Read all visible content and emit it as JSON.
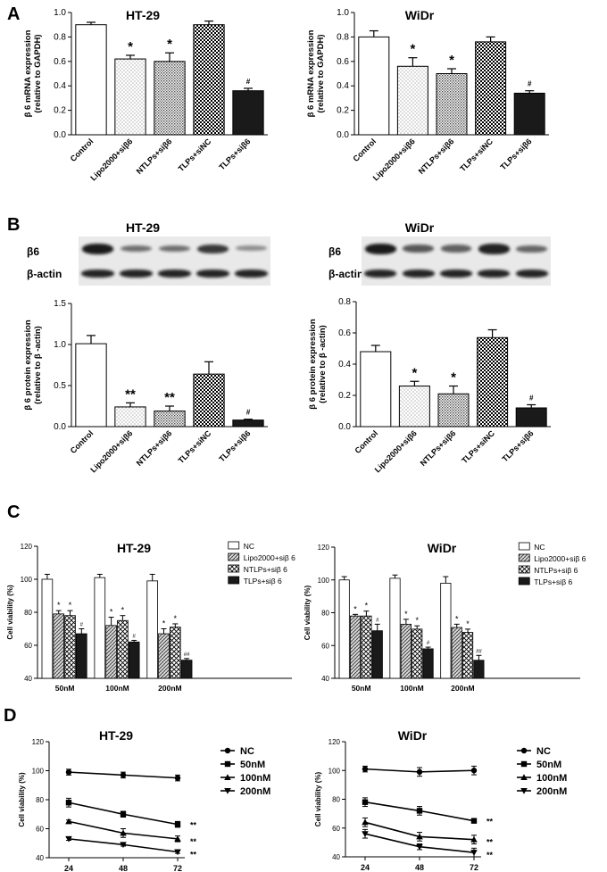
{
  "panels": {
    "a": "A",
    "b": "B",
    "c": "C",
    "d": "D"
  },
  "colors": {
    "black": "#000000",
    "dark_bar": "#1a1a1a",
    "white_bar": "#ffffff"
  },
  "patterns": [
    "white",
    "dotted",
    "dense-dotted",
    "checkered",
    "solid-black"
  ],
  "c_patterns": [
    "white",
    "hatched",
    "crosshatched",
    "solid-black"
  ],
  "d_markers": [
    "circle",
    "square",
    "triangle-up",
    "triangle-down"
  ],
  "blot_labels": {
    "target": "β6",
    "control": "β-actin"
  },
  "blot_bands": [
    {
      "title": "HT-29",
      "target": [
        1.0,
        0.45,
        0.45,
        0.8,
        0.25
      ],
      "control": [
        1.0,
        1.0,
        1.0,
        1.0,
        1.0
      ]
    },
    {
      "title": "WiDr",
      "target": [
        1.0,
        0.6,
        0.55,
        0.95,
        0.5
      ],
      "control": [
        1.0,
        1.0,
        1.0,
        1.0,
        1.0
      ]
    }
  ],
  "chart_data": [
    {
      "panel": "A",
      "type": "bar",
      "title": "HT-29",
      "ylabel": "β 6 mRNA expression (relative to GAPDH)",
      "categories": [
        "Control",
        "Lipo2000+siβ6",
        "NTLPs+siβ6",
        "TLPs+siNC",
        "TLPs+siβ6"
      ],
      "values": [
        0.9,
        0.62,
        0.6,
        0.9,
        0.36
      ],
      "errors": [
        0.02,
        0.03,
        0.07,
        0.03,
        0.02
      ],
      "annotations": [
        "",
        "*",
        "*",
        "",
        "#"
      ],
      "ylim": [
        0,
        1.0
      ],
      "yticks": [
        0.0,
        0.2,
        0.4,
        0.6,
        0.8,
        1.0
      ],
      "ytick_labels": [
        "0.0",
        "0.2",
        "0.4",
        "0.6",
        "0.8",
        "1.0"
      ]
    },
    {
      "panel": "A",
      "type": "bar",
      "title": "WiDr",
      "ylabel": "β 6 mRNA expression (relative to GAPDH)",
      "categories": [
        "Control",
        "Lipo2000+siβ6",
        "NTLPs+siβ6",
        "TLPs+siNC",
        "TLPs+siβ6"
      ],
      "values": [
        0.8,
        0.56,
        0.5,
        0.76,
        0.34
      ],
      "errors": [
        0.05,
        0.07,
        0.04,
        0.04,
        0.02
      ],
      "annotations": [
        "",
        "*",
        "*",
        "",
        "#"
      ],
      "ylim": [
        0,
        1.0
      ],
      "yticks": [
        0.0,
        0.2,
        0.4,
        0.6,
        0.8,
        1.0
      ],
      "ytick_labels": [
        "0.0",
        "0.2",
        "0.4",
        "0.6",
        "0.8",
        "1.0"
      ]
    },
    {
      "panel": "B",
      "type": "bar",
      "title": "HT-29",
      "ylabel": "β 6 protein expression (relative to β -actin)",
      "categories": [
        "Control",
        "Lipo2000+siβ6",
        "NTLPs+siβ6",
        "TLPs+siNC",
        "TLPs+siβ6"
      ],
      "values": [
        1.01,
        0.24,
        0.19,
        0.64,
        0.08
      ],
      "errors": [
        0.1,
        0.05,
        0.06,
        0.15,
        0.01
      ],
      "annotations": [
        "",
        "**",
        "**",
        "",
        "#"
      ],
      "ylim": [
        0,
        1.5
      ],
      "yticks": [
        0.0,
        0.5,
        1.0,
        1.5
      ],
      "ytick_labels": [
        "0.0",
        "0.5",
        "1.0",
        "1.5"
      ]
    },
    {
      "panel": "B",
      "type": "bar",
      "title": "WiDr",
      "ylabel": "β 6 protein expression (relative to β -actin)",
      "categories": [
        "Control",
        "Lipo2000+siβ6",
        "NTLPs+siβ6",
        "TLPs+siNC",
        "TLPs+siβ6"
      ],
      "values": [
        0.48,
        0.26,
        0.21,
        0.57,
        0.12
      ],
      "errors": [
        0.04,
        0.03,
        0.05,
        0.05,
        0.02
      ],
      "annotations": [
        "",
        "*",
        "*",
        "",
        "#"
      ],
      "ylim": [
        0,
        0.8
      ],
      "yticks": [
        0.0,
        0.2,
        0.4,
        0.6,
        0.8
      ],
      "ytick_labels": [
        "0.0",
        "0.2",
        "0.4",
        "0.6",
        "0.8"
      ]
    },
    {
      "panel": "C",
      "type": "bar",
      "title": "HT-29",
      "ylabel": "Cell viability (%)",
      "categories": [
        "50nM",
        "100nM",
        "200nM"
      ],
      "series": [
        {
          "name": "NC",
          "values": [
            100,
            101,
            99
          ],
          "errors": [
            3,
            2,
            4
          ],
          "annotations": [
            "",
            "",
            ""
          ]
        },
        {
          "name": "Lipo2000+siβ 6",
          "values": [
            79,
            72,
            67
          ],
          "errors": [
            2,
            5,
            3
          ],
          "annotations": [
            "*",
            "*",
            "*"
          ]
        },
        {
          "name": "NTLPs+siβ 6",
          "values": [
            78,
            75,
            71
          ],
          "errors": [
            3,
            3,
            2
          ],
          "annotations": [
            "*",
            "*",
            "*"
          ]
        },
        {
          "name": "TLPs+siβ 6",
          "values": [
            67,
            62,
            51
          ],
          "errors": [
            3,
            1,
            1
          ],
          "annotations": [
            "#",
            "#",
            "##"
          ]
        }
      ],
      "ylim": [
        40,
        120
      ],
      "yticks": [
        40,
        60,
        80,
        100,
        120
      ],
      "ytick_labels": [
        "40",
        "60",
        "80",
        "100",
        "120"
      ],
      "legend": "top-right"
    },
    {
      "panel": "C",
      "type": "bar",
      "title": "WiDr",
      "ylabel": "Cell viability (%)",
      "categories": [
        "50nM",
        "100nM",
        "200nM"
      ],
      "series": [
        {
          "name": "NC",
          "values": [
            100,
            101,
            98
          ],
          "errors": [
            2,
            2,
            4
          ],
          "annotations": [
            "",
            "",
            ""
          ]
        },
        {
          "name": "Lipo2000+siβ 6",
          "values": [
            78,
            73,
            71
          ],
          "errors": [
            1,
            3,
            2
          ],
          "annotations": [
            "*",
            "*",
            "*"
          ]
        },
        {
          "name": "NTLPs+siβ 6",
          "values": [
            78,
            70,
            68
          ],
          "errors": [
            3,
            2,
            2
          ],
          "annotations": [
            "*",
            "*",
            "*"
          ]
        },
        {
          "name": "TLPs+siβ 6",
          "values": [
            69,
            58,
            51
          ],
          "errors": [
            4,
            1,
            3
          ],
          "annotations": [
            "#",
            "#",
            "##"
          ]
        }
      ],
      "ylim": [
        40,
        120
      ],
      "yticks": [
        40,
        60,
        80,
        100,
        120
      ],
      "ytick_labels": [
        "40",
        "60",
        "80",
        "100",
        "120"
      ],
      "legend": "top-right"
    },
    {
      "panel": "D",
      "type": "line",
      "title": "HT-29",
      "ylabel": "Cell viability (%)",
      "x": [
        24,
        48,
        72
      ],
      "xtick_labels": [
        "24",
        "48",
        "72"
      ],
      "series": [
        {
          "name": "NC",
          "values": [
            99,
            97,
            95
          ],
          "errors": [
            2,
            2,
            2
          ],
          "end_label": ""
        },
        {
          "name": "50nM",
          "values": [
            78,
            70,
            63
          ],
          "errors": [
            3,
            2,
            2
          ],
          "end_label": "**"
        },
        {
          "name": "100nM",
          "values": [
            65,
            57,
            53
          ],
          "errors": [
            1,
            3,
            2
          ],
          "end_label": "**"
        },
        {
          "name": "200nM",
          "values": [
            53,
            49,
            44
          ],
          "errors": [
            1,
            1,
            1
          ],
          "end_label": "**"
        }
      ],
      "ylim": [
        40,
        120
      ],
      "yticks": [
        40,
        60,
        80,
        100,
        120
      ],
      "ytick_labels": [
        "40",
        "60",
        "80",
        "100",
        "120"
      ],
      "legend": "right"
    },
    {
      "panel": "D",
      "type": "line",
      "title": "WiDr",
      "ylabel": "Cell viability (%)",
      "x": [
        24,
        48,
        72
      ],
      "xtick_labels": [
        "24",
        "48",
        "72"
      ],
      "series": [
        {
          "name": "NC",
          "values": [
            101,
            99,
            100
          ],
          "errors": [
            2,
            3,
            3
          ],
          "end_label": ""
        },
        {
          "name": "50nM",
          "values": [
            78,
            72,
            65
          ],
          "errors": [
            3,
            3,
            1
          ],
          "end_label": "**"
        },
        {
          "name": "100nM",
          "values": [
            64,
            54,
            52
          ],
          "errors": [
            3,
            3,
            3
          ],
          "end_label": "**"
        },
        {
          "name": "200nM",
          "values": [
            56,
            47,
            43
          ],
          "errors": [
            3,
            2,
            3
          ],
          "end_label": "**"
        }
      ],
      "ylim": [
        40,
        120
      ],
      "yticks": [
        40,
        60,
        80,
        100,
        120
      ],
      "ytick_labels": [
        "40",
        "60",
        "80",
        "100",
        "120"
      ],
      "legend": "right"
    }
  ]
}
